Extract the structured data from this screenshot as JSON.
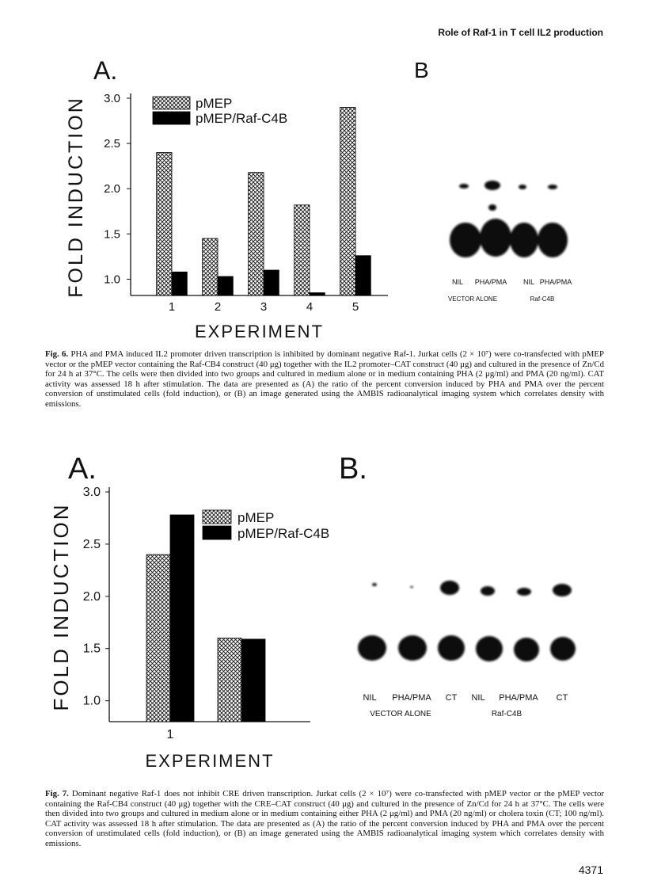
{
  "header": {
    "running_title": "Role of Raf-1 in T cell IL2 production"
  },
  "chart_data": [
    {
      "type": "bar",
      "panel": "A.",
      "ylabel": "FOLD INDUCTION",
      "xlabel": "EXPERIMENT",
      "categories": [
        "1",
        "2",
        "3",
        "4",
        "5"
      ],
      "series": [
        {
          "name": "pMEP",
          "color": "#000000",
          "pattern": "crosshatch",
          "values": [
            2.4,
            1.45,
            2.18,
            1.82,
            2.9
          ]
        },
        {
          "name": "pMEP/Raf-C4B",
          "color": "#000000",
          "values": [
            1.08,
            1.03,
            1.1,
            0.85,
            1.26
          ]
        }
      ],
      "ylim": [
        0.82,
        3.0
      ],
      "yticks": [
        {
          "value": 1,
          "label": "1.0"
        },
        1.5,
        {
          "value": 2,
          "label": "2.0"
        },
        2.5,
        {
          "value": 3,
          "label": "3.0"
        }
      ]
    },
    {
      "type": "bar",
      "panel": "A.",
      "ylabel": "FOLD INDUCTION",
      "xlabel": "EXPERIMENT",
      "categories": [
        "1",
        null
      ],
      "series": [
        {
          "name": "pMEP",
          "color": "#000000",
          "pattern": "crosshatch",
          "values": [
            2.4,
            1.6
          ]
        },
        {
          "name": "pMEP/Raf-C4B",
          "color": "#000000",
          "values": [
            2.78,
            1.59
          ]
        }
      ],
      "ylim": [
        0.8,
        3.0
      ],
      "yticks": [
        {
          "value": 1,
          "label": "1.0"
        },
        1.5,
        {
          "value": 2,
          "label": "2.0"
        },
        2.5,
        {
          "value": 3,
          "label": "3.0"
        }
      ]
    }
  ],
  "figures": [
    {
      "panel_b": {
        "label": "B",
        "lanes": [
          "NIL",
          "PHA/PMA",
          "NIL",
          "PHA/PMA"
        ],
        "groups": [
          "VECTOR ALONE",
          "Raf-C4B"
        ]
      },
      "caption": {
        "label": "Fig. 6.",
        "text": "PHA and PMA induced IL2 promoter driven transcription is inhibited by dominant negative Raf-1. Jurkat cells (2 × 10⁷) were co-transfected with pMEP vector or the pMEP vector containing the Raf-CB4 construct (40 μg) together with the IL2 promoter–CAT construct (40 μg) and cultured in the presence of Zn/Cd for 24 h at 37°C. The cells were then divided into two groups and cultured in medium alone or in medium containing PHA (2 μg/ml) and PMA (20 ng/ml). CAT activity was assessed 18 h after stimulation. The data are presented as (A) the ratio of the percent conversion induced by PHA and PMA over the percent conversion of unstimulated cells (fold induction), or (B) an image generated using the AMBIS radioanalytical imaging system which correlates density with emissions."
      }
    },
    {
      "panel_b": {
        "label": "B.",
        "lanes": [
          "NIL",
          "PHA/PMA",
          "CT",
          "NIL",
          "PHA/PMA",
          "CT"
        ],
        "groups": [
          "VECTOR ALONE",
          "Raf-C4B"
        ]
      },
      "caption": {
        "label": "Fig. 7.",
        "text": "Dominant negative Raf-1 does not inhibit CRE driven transcription. Jurkat cells (2 × 10⁷) were co-transfected with pMEP vector or the pMEP vector containing the Raf-CB4 construct (40 μg) together with the CRE–CAT construct (40 μg) and cultured in the presence of Zn/Cd for 24 h at 37°C. The cells were then divided into two groups and cultured in medium alone or in medium containing either PHA (2 μg/ml) and PMA (20 ng/ml) or cholera toxin (CT; 100 ng/ml). CAT activity was assessed 18 h after stimulation. The data are presented as (A) the ratio of the percent conversion induced by PHA and PMA over the percent conversion of unstimulated cells (fold induction), or (B) an image generated using the AMBIS radioanalytical imaging system which correlates density with emissions."
      }
    }
  ],
  "page_number": "4371"
}
